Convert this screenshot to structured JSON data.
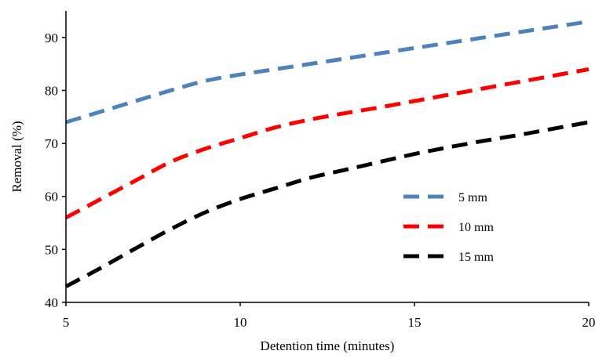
{
  "chart_data": {
    "type": "line",
    "title": "",
    "xlabel": "Detention time (minutes)",
    "ylabel": "Removal (%)",
    "xlim": [
      5,
      20
    ],
    "ylim": [
      40,
      95
    ],
    "xticks": [
      5,
      10,
      15,
      20
    ],
    "yticks": [
      40,
      50,
      60,
      70,
      80,
      90
    ],
    "grid": false,
    "legend_position": "center-right",
    "series": [
      {
        "name": "5 mm",
        "color": "#4F81BD",
        "dash": "dashed",
        "x": [
          5,
          6,
          7,
          8,
          9,
          10,
          11,
          12,
          13,
          14,
          15,
          16,
          17,
          18,
          19,
          20
        ],
        "y": [
          74,
          76,
          78,
          80,
          81.8,
          83,
          84,
          85,
          86,
          87,
          88,
          89,
          90,
          91,
          92,
          93
        ]
      },
      {
        "name": "10 mm",
        "color": "#FF0000",
        "dash": "dashed",
        "x": [
          5,
          6,
          7,
          8,
          9,
          10,
          11,
          12,
          13,
          14,
          15,
          16,
          17,
          18,
          19,
          20
        ],
        "y": [
          56,
          59.5,
          63,
          66.5,
          69,
          71,
          73,
          74.5,
          75.7,
          76.8,
          78,
          79.2,
          80.4,
          81.6,
          82.8,
          84
        ]
      },
      {
        "name": "15 mm",
        "color": "#000000",
        "dash": "dashed",
        "x": [
          5,
          6,
          7,
          8,
          9,
          10,
          11,
          12,
          13,
          14,
          15,
          16,
          17,
          18,
          19,
          20
        ],
        "y": [
          43,
          46.5,
          50.2,
          53.8,
          57,
          59.5,
          61.5,
          63.5,
          65,
          66.5,
          68,
          69.3,
          70.5,
          71.6,
          72.8,
          74
        ]
      }
    ]
  }
}
